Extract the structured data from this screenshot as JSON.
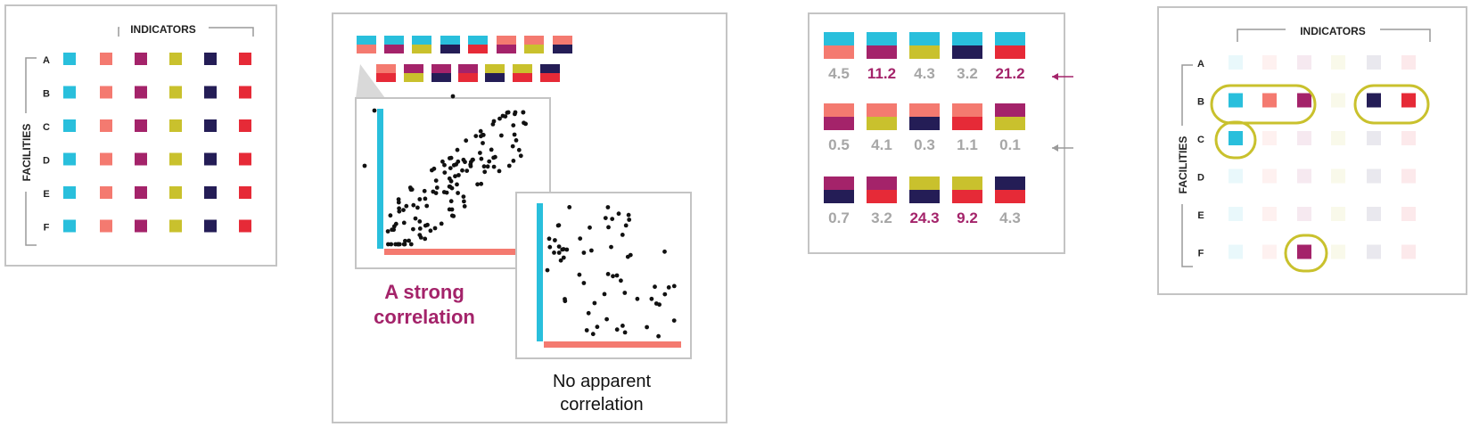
{
  "colors": {
    "cyan": "#29bfdc",
    "salmon": "#f47a70",
    "magenta": "#a4236a",
    "olive": "#c9c12d",
    "navy": "#241d56",
    "red": "#e62a37",
    "gray_text": "#a6a6a6",
    "highlight": "#c9c12d"
  },
  "matrix": {
    "x_title": "INDICATORS",
    "y_title": "FACILITIES",
    "rows": [
      "A",
      "B",
      "C",
      "D",
      "E",
      "F"
    ],
    "indicator_colors": [
      "cyan",
      "salmon",
      "magenta",
      "olive",
      "navy",
      "red"
    ]
  },
  "highlighted_matrix": {
    "x_title": "INDICATORS",
    "y_title": "FACILITIES",
    "rows": [
      "A",
      "B",
      "C",
      "D",
      "E",
      "F"
    ],
    "highlighted_cells": [
      [
        1,
        0
      ],
      [
        1,
        1
      ],
      [
        1,
        2
      ],
      [
        1,
        4
      ],
      [
        1,
        5
      ],
      [
        2,
        0
      ],
      [
        5,
        2
      ]
    ],
    "circled_groups": [
      "B: cyan, salmon, magenta",
      "B: navy, red",
      "C: cyan",
      "F: magenta"
    ]
  },
  "correlation_panel": {
    "pair_rows": [
      [
        [
          "cyan",
          "salmon"
        ],
        [
          "cyan",
          "magenta"
        ],
        [
          "cyan",
          "olive"
        ],
        [
          "cyan",
          "navy"
        ],
        [
          "cyan",
          "red"
        ],
        [
          "salmon",
          "magenta"
        ],
        [
          "salmon",
          "olive"
        ],
        [
          "salmon",
          "navy"
        ]
      ],
      [
        [
          "salmon",
          "red"
        ],
        [
          "magenta",
          "olive"
        ],
        [
          "magenta",
          "navy"
        ],
        [
          "magenta",
          "red"
        ],
        [
          "olive",
          "navy"
        ],
        [
          "olive",
          "red"
        ],
        [
          "navy",
          "red"
        ]
      ]
    ],
    "strong_label_line1": "A strong",
    "strong_label_line2": "correlation",
    "weak_label_line1": "No apparent",
    "weak_label_line2": "correlation"
  },
  "scores_panel": {
    "rows": [
      {
        "pairs": [
          [
            "cyan",
            "salmon"
          ],
          [
            "cyan",
            "magenta"
          ],
          [
            "cyan",
            "olive"
          ],
          [
            "cyan",
            "navy"
          ],
          [
            "cyan",
            "red"
          ]
        ],
        "values": [
          "4.5",
          "11.2",
          "4.3",
          "3.2",
          "21.2"
        ],
        "emphasis": [
          false,
          true,
          false,
          false,
          true
        ],
        "arrow": "magenta"
      },
      {
        "pairs": [
          [
            "salmon",
            "magenta"
          ],
          [
            "salmon",
            "olive"
          ],
          [
            "salmon",
            "navy"
          ],
          [
            "salmon",
            "red"
          ],
          [
            "magenta",
            "olive"
          ]
        ],
        "values": [
          "0.5",
          "4.1",
          "0.3",
          "1.1",
          "0.1"
        ],
        "emphasis": [
          false,
          false,
          false,
          false,
          false
        ],
        "arrow": "gray"
      },
      {
        "pairs": [
          [
            "magenta",
            "navy"
          ],
          [
            "magenta",
            "red"
          ],
          [
            "olive",
            "navy"
          ],
          [
            "olive",
            "red"
          ],
          [
            "navy",
            "red"
          ]
        ],
        "values": [
          "0.7",
          "3.2",
          "24.3",
          "9.2",
          "4.3"
        ],
        "emphasis": [
          false,
          false,
          true,
          true,
          false
        ],
        "arrow": null
      }
    ]
  }
}
